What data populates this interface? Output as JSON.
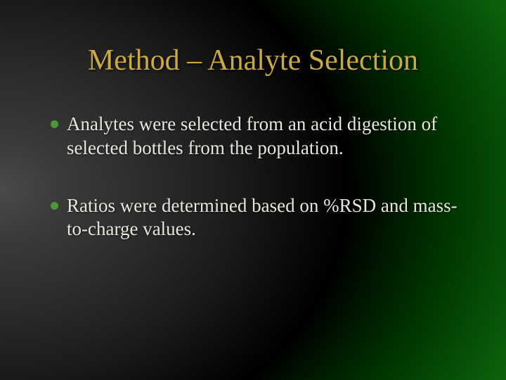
{
  "slide": {
    "title": "Method – Analyte Selection",
    "title_color": "#c9a940",
    "title_fontsize": 42,
    "body_color": "#e8e6dc",
    "body_fontsize": 27,
    "bullet_color": "#4a9a3a",
    "background": {
      "type": "radial-gradient",
      "left_shade": "#4a4a4a",
      "center": "#000000",
      "right_shade": "#1a7a1a"
    },
    "bullets": [
      "Analytes were selected from an acid digestion of selected bottles from the population.",
      "Ratios were determined based on %RSD and mass-to-charge values."
    ]
  }
}
